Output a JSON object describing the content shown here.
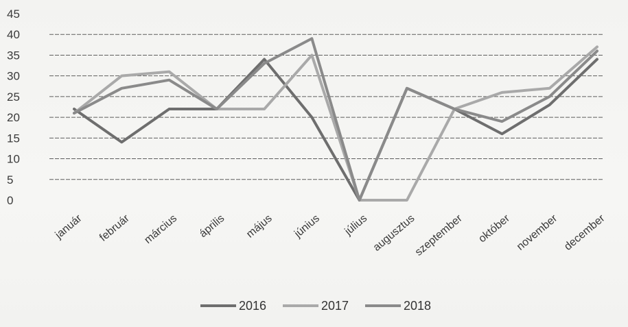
{
  "chart_data": {
    "type": "line",
    "categories": [
      "január",
      "február",
      "március",
      "április",
      "május",
      "június",
      "július",
      "augusztus",
      "szeptember",
      "október",
      "november",
      "december"
    ],
    "series": [
      {
        "name": "2016",
        "values": [
          22,
          14,
          22,
          22,
          34,
          20,
          0,
          27,
          22,
          16,
          23,
          34
        ],
        "color": "#6e6e6e"
      },
      {
        "name": "2017",
        "values": [
          21,
          30,
          31,
          22,
          22,
          35,
          0,
          0,
          22,
          26,
          27,
          37
        ],
        "color": "#a9a9a9"
      },
      {
        "name": "2018",
        "values": [
          21,
          27,
          29,
          22,
          33,
          39,
          0,
          27,
          22,
          19,
          25,
          36
        ],
        "color": "#8a8a8a"
      }
    ],
    "yticks": [
      0,
      5,
      10,
      15,
      20,
      25,
      30,
      35,
      40,
      45
    ],
    "ylim": [
      0,
      45
    ],
    "xlabel": "",
    "ylabel": "",
    "grid": true,
    "legend": "bottom"
  }
}
